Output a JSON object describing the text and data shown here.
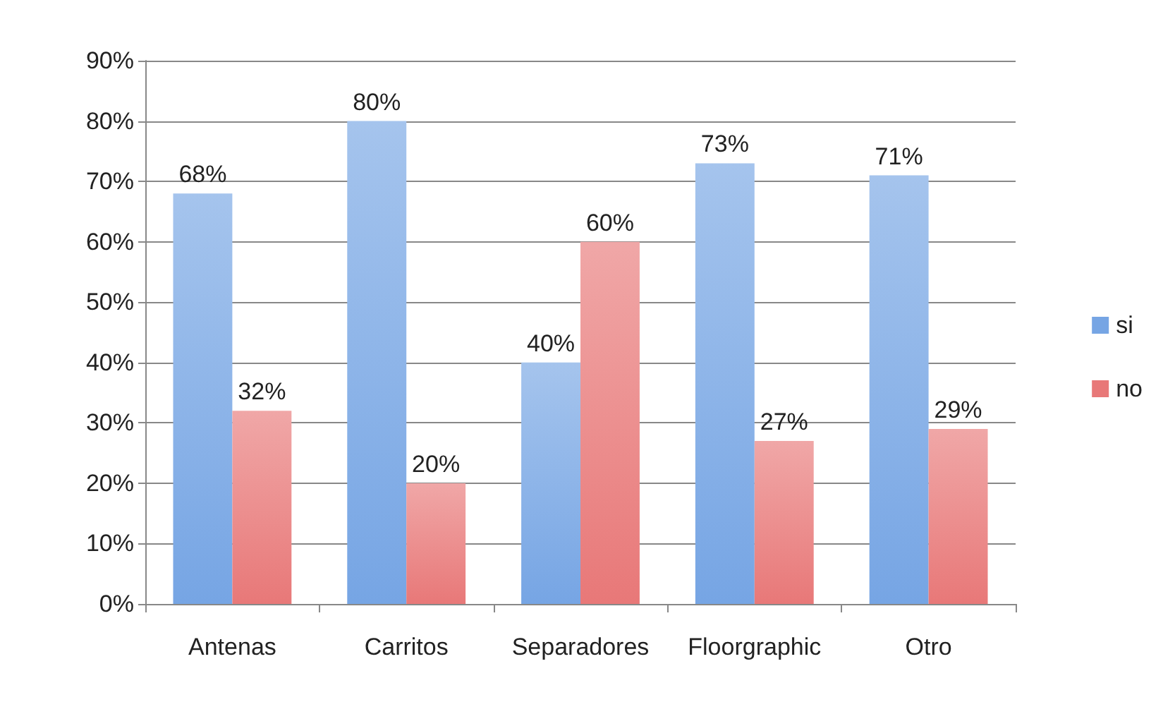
{
  "chart_data": {
    "type": "bar",
    "categories": [
      "Antenas",
      "Carritos",
      "Separadores",
      "Floorgraphic",
      "Otro"
    ],
    "series": [
      {
        "name": "si",
        "color": "#76a5e4",
        "values": [
          68,
          80,
          40,
          73,
          71
        ],
        "value_labels": [
          "68%",
          "80%",
          "40%",
          "73%",
          "71%"
        ]
      },
      {
        "name": "no",
        "color": "#e87878",
        "values": [
          32,
          20,
          60,
          27,
          29
        ],
        "value_labels": [
          "32%",
          "20%",
          "60%",
          "27%",
          "29%"
        ]
      }
    ],
    "ylim": [
      0,
      90
    ],
    "yticks": [
      {
        "value": 0,
        "label": "0%"
      },
      {
        "value": 10,
        "label": "10%"
      },
      {
        "value": 20,
        "label": "20%"
      },
      {
        "value": 30,
        "label": "30%"
      },
      {
        "value": 40,
        "label": "40%"
      },
      {
        "value": 50,
        "label": "50%"
      },
      {
        "value": 60,
        "label": "60%"
      },
      {
        "value": 70,
        "label": "70%"
      },
      {
        "value": 80,
        "label": "80%"
      },
      {
        "value": 90,
        "label": "90%"
      }
    ],
    "grid": "y",
    "legend": "right"
  }
}
